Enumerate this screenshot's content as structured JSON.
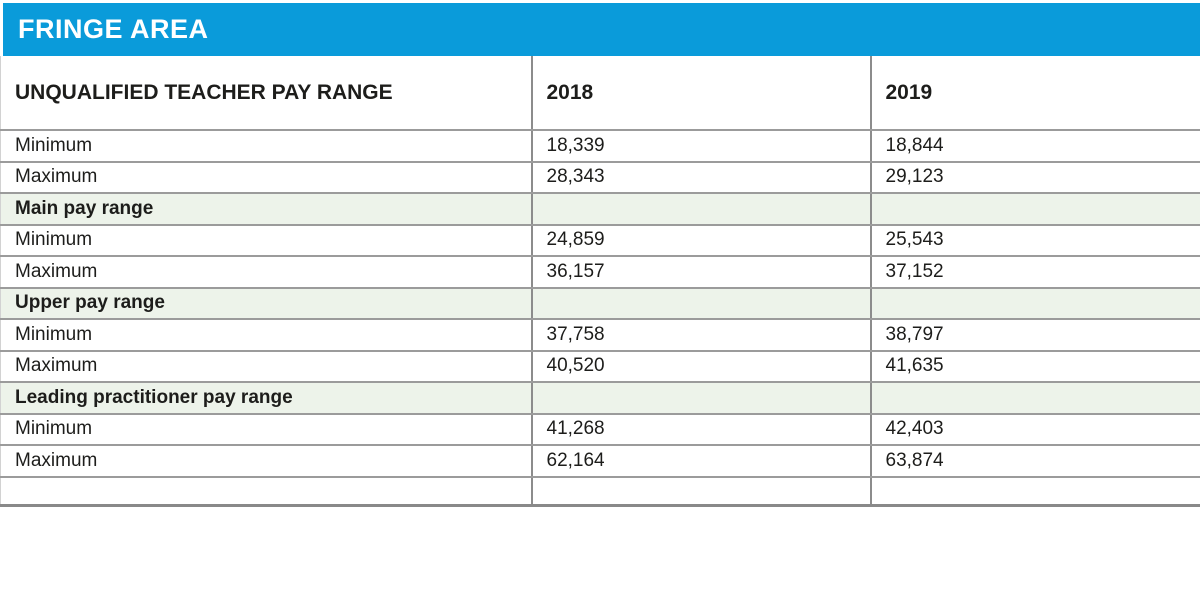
{
  "title_bar": {
    "label": "FRINGE AREA"
  },
  "table": {
    "columns": [
      "UNQUALIFIED TEACHER PAY RANGE",
      "2018",
      "2019"
    ],
    "rows": [
      {
        "type": "data",
        "label": "Minimum",
        "values": [
          "18,339",
          "18,844"
        ]
      },
      {
        "type": "data",
        "label": "Maximum",
        "values": [
          "28,343",
          "29,123"
        ]
      },
      {
        "type": "section",
        "label": "Main pay range",
        "values": [
          "",
          ""
        ]
      },
      {
        "type": "data",
        "label": "Minimum",
        "values": [
          "24,859",
          "25,543"
        ]
      },
      {
        "type": "data",
        "label": "Maximum",
        "values": [
          "36,157",
          "37,152"
        ]
      },
      {
        "type": "section",
        "label": "Upper pay range",
        "values": [
          "",
          ""
        ]
      },
      {
        "type": "data",
        "label": "Minimum",
        "values": [
          "37,758",
          "38,797"
        ]
      },
      {
        "type": "data",
        "label": "Maximum",
        "values": [
          "40,520",
          "41,635"
        ]
      },
      {
        "type": "section",
        "label": "Leading practitioner pay range",
        "values": [
          "",
          ""
        ]
      },
      {
        "type": "data",
        "label": "Minimum",
        "values": [
          "41,268",
          "42,403"
        ]
      },
      {
        "type": "data",
        "label": "Maximum",
        "values": [
          "62,164",
          "63,874"
        ]
      },
      {
        "type": "empty",
        "label": "",
        "values": [
          "",
          ""
        ]
      }
    ]
  },
  "colors": {
    "title_bar_blue": "#0a9bda",
    "section_row_green": "#edf3ea",
    "row_rule_gray": "#9b9b9b",
    "column_divider_gray": "#8c8c8c",
    "table_bottom_gray": "#898989",
    "title_text": "#ffffff",
    "body_text": "#1d1d1b"
  },
  "chart_data": {
    "type": "table",
    "title": "FRINGE AREA",
    "columns": [
      "UNQUALIFIED TEACHER PAY RANGE",
      "2018",
      "2019"
    ],
    "sections": [
      {
        "name": "Unqualified teacher pay range",
        "rows": [
          {
            "label": "Minimum",
            "2018": 18339,
            "2019": 18844
          },
          {
            "label": "Maximum",
            "2018": 28343,
            "2019": 29123
          }
        ]
      },
      {
        "name": "Main pay range",
        "rows": [
          {
            "label": "Minimum",
            "2018": 24859,
            "2019": 25543
          },
          {
            "label": "Maximum",
            "2018": 36157,
            "2019": 37152
          }
        ]
      },
      {
        "name": "Upper pay range",
        "rows": [
          {
            "label": "Minimum",
            "2018": 37758,
            "2019": 38797
          },
          {
            "label": "Maximum",
            "2018": 40520,
            "2019": 41635
          }
        ]
      },
      {
        "name": "Leading practitioner pay range",
        "rows": [
          {
            "label": "Minimum",
            "2018": 41268,
            "2019": 42403
          },
          {
            "label": "Maximum",
            "2018": 62164,
            "2019": 63874
          }
        ]
      }
    ]
  }
}
